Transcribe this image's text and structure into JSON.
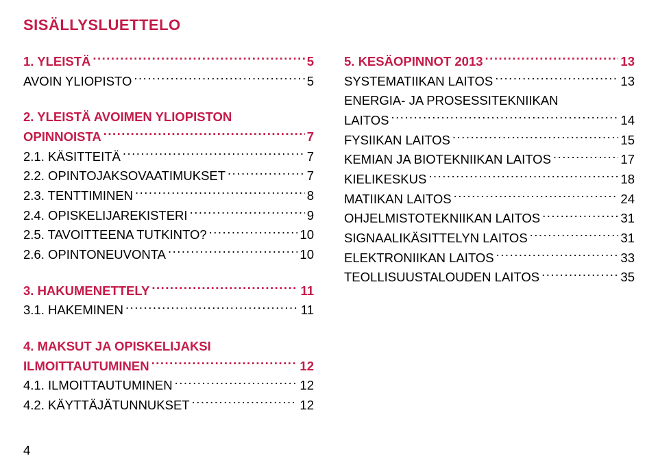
{
  "title": "SISÄLLYSLUETTELO",
  "pageNumber": "4",
  "left": {
    "e0": {
      "label": "1. YLEISTÄ",
      "page": "5"
    },
    "e1": {
      "label": "AVOIN YLIOPISTO",
      "page": "5"
    },
    "h1_line1": "2. YLEISTÄ AVOIMEN YLIOPISTON",
    "h1_line2": "OPINNOISTA",
    "h1_page": "7",
    "e2": {
      "label": "2.1. KÄSITTEITÄ",
      "page": "7"
    },
    "e3": {
      "label": "2.2. OPINTOJAKSOVAATIMUKSET",
      "page": "7"
    },
    "e4": {
      "label": "2.3. TENTTIMINEN",
      "page": "8"
    },
    "e5": {
      "label": "2.4. OPISKELIJAREKISTERI",
      "page": "9"
    },
    "e6": {
      "label": "2.5. TAVOITTEENA TUTKINTO?",
      "page": "10"
    },
    "e7": {
      "label": "2.6. OPINTONEUVONTA",
      "page": "10"
    },
    "e8": {
      "label": "3. HAKUMENETTELY",
      "page": "11"
    },
    "e9": {
      "label": "3.1. HAKEMINEN",
      "page": "11"
    },
    "h2_line1": "4. MAKSUT JA OPISKELIJAKSI",
    "h2_line2": "ILMOITTAUTUMINEN",
    "h2_page": "12",
    "e10": {
      "label": "4.1. ILMOITTAUTUMINEN",
      "page": "12"
    },
    "e11": {
      "label": "4.2. KÄYTTÄJÄTUNNUKSET",
      "page": "12"
    }
  },
  "right": {
    "r0": {
      "label": "5. KESÄOPINNOT 2013",
      "page": "13"
    },
    "r1": {
      "label": "SYSTEMATIIKAN LAITOS",
      "page": "13"
    },
    "rh_line1": "ENERGIA- JA PROSESSITEKNIIKAN",
    "rh_line2": "LAITOS",
    "rh_page": "14",
    "r2": {
      "label": "FYSIIKAN LAITOS",
      "page": "15"
    },
    "r3": {
      "label": "KEMIAN JA BIOTEKNIIKAN LAITOS",
      "page": "17"
    },
    "r4": {
      "label": "KIELIKESKUS",
      "page": "18"
    },
    "r5": {
      "label": "MATIIKAN LAITOS",
      "page": "24"
    },
    "r6": {
      "label": "OHJELMISTOTEKNIIKAN LAITOS",
      "page": "31"
    },
    "r7": {
      "label": "SIGNAALIKÄSITTELYN LAITOS",
      "page": "31"
    },
    "r8": {
      "label": "ELEKTRONIIKAN LAITOS",
      "page": "33"
    },
    "r9": {
      "label": "TEOLLISUUSTALOUDEN LAITOS",
      "page": "35"
    }
  }
}
